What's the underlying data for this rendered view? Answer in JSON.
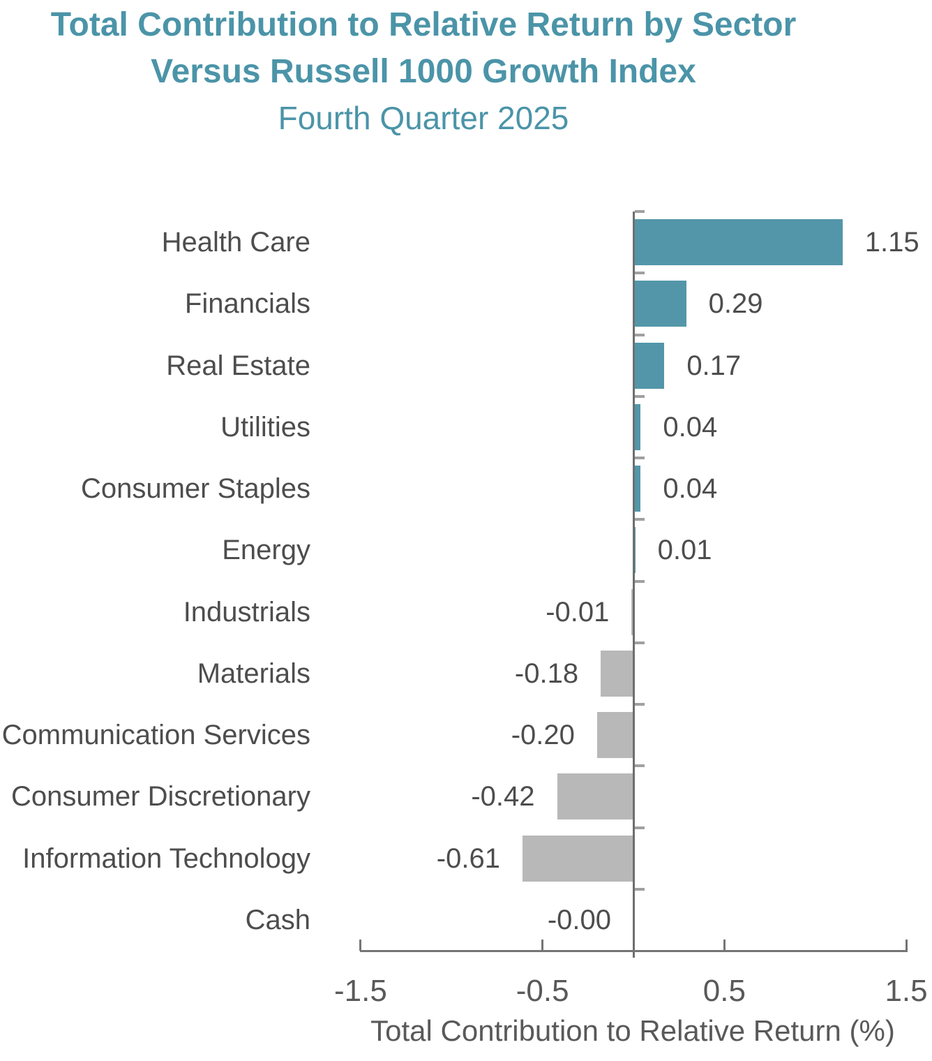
{
  "title": {
    "line1": "Total Contribution to Relative Return by Sector",
    "line2": "Versus Russell 1000 Growth Index",
    "line3": "Fourth Quarter 2025"
  },
  "colors": {
    "title_teal": "#4B94A8",
    "bar_positive": "#5396A9",
    "bar_negative": "#B8B8B8",
    "zero_line": "#6E6E6E",
    "row_tick": "#A0A0A0",
    "axis_line": "#757575",
    "label_text": "#4D4D4D",
    "axis_text": "#595959"
  },
  "chart_data": {
    "type": "bar",
    "orientation": "horizontal",
    "title": "Total Contribution to Relative Return by Sector Versus Russell 1000 Growth Index",
    "subtitle": "Fourth Quarter 2025",
    "categories": [
      "Health Care",
      "Financials",
      "Real Estate",
      "Utilities",
      "Consumer Staples",
      "Energy",
      "Industrials",
      "Materials",
      "Communication Services",
      "Consumer Discretionary",
      "Information Technology",
      "Cash"
    ],
    "values": [
      1.15,
      0.29,
      0.17,
      0.04,
      0.04,
      0.01,
      -0.01,
      -0.18,
      -0.2,
      -0.42,
      -0.61,
      -0.0
    ],
    "value_labels": [
      "1.15",
      "0.29",
      "0.17",
      "0.04",
      "0.04",
      "0.01",
      "-0.01",
      "-0.18",
      "-0.20",
      "-0.42",
      "-0.61",
      "-0.00"
    ],
    "xlabel": "Total Contribution to Relative Return (%)",
    "xlim": [
      -1.5,
      1.5
    ],
    "x_tick_values": [
      -1.5,
      -0.5,
      0.5,
      1.5
    ],
    "x_tick_labels": [
      "-1.5",
      "-0.5",
      "0.5",
      "1.5"
    ],
    "legend": "none",
    "grid": "off",
    "color_rule": "positive bars teal, negative bars gray, labels outside bar ends"
  }
}
